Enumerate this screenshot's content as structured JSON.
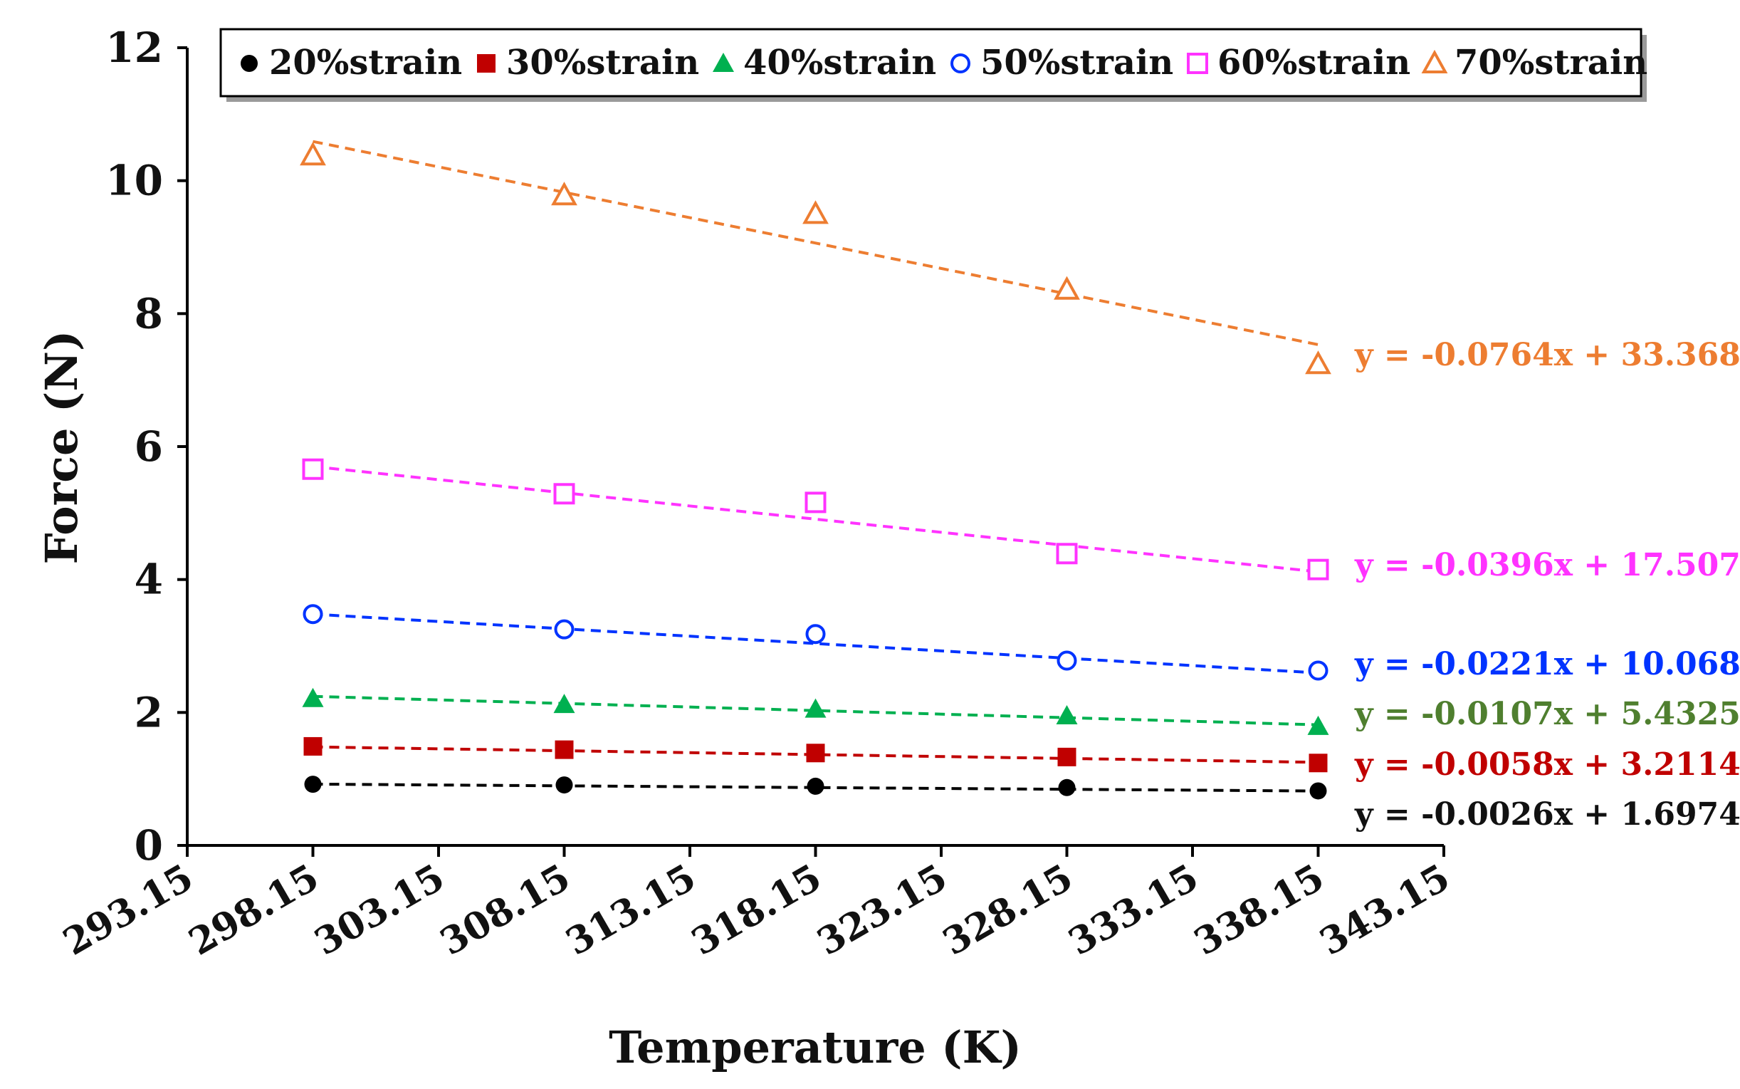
{
  "chart_data": {
    "type": "scatter",
    "title": "",
    "xlabel": "Temperature (K)",
    "ylabel": "Force (N)",
    "xlim": [
      293.15,
      343.15
    ],
    "ylim": [
      0,
      12
    ],
    "xticks": [
      "293.15",
      "298.15",
      "303.15",
      "308.15",
      "313.15",
      "318.15",
      "323.15",
      "328.15",
      "333.15",
      "338.15",
      "343.15"
    ],
    "yticks": [
      "0",
      "2",
      "4",
      "6",
      "8",
      "10",
      "12"
    ],
    "grid": false,
    "legend_position": "top",
    "series": [
      {
        "name": "20%strain",
        "marker": "filled-circle",
        "color": "#000000",
        "x": [
          298.15,
          308.15,
          318.15,
          328.15,
          338.15
        ],
        "y": [
          0.92,
          0.91,
          0.89,
          0.87,
          0.82
        ],
        "trendline": {
          "slope": -0.0026,
          "intercept": 1.6974,
          "equation": "y = -0.0026x + 1.6974"
        }
      },
      {
        "name": "30%strain",
        "marker": "filled-square",
        "color": "#c00000",
        "x": [
          298.15,
          308.15,
          318.15,
          328.15,
          338.15
        ],
        "y": [
          1.49,
          1.44,
          1.39,
          1.33,
          1.24
        ],
        "trendline": {
          "slope": -0.0058,
          "intercept": 3.2114,
          "equation": "y = -0.0058x + 3.2114"
        }
      },
      {
        "name": "40%strain",
        "marker": "filled-triangle",
        "color": "#00b050",
        "x": [
          298.15,
          308.15,
          318.15,
          328.15,
          338.15
        ],
        "y": [
          2.21,
          2.12,
          2.05,
          1.95,
          1.79
        ],
        "trendline": {
          "slope": -0.0107,
          "intercept": 5.4325,
          "equation": "y = -0.0107x + 5.4325"
        }
      },
      {
        "name": "50%strain",
        "marker": "open-circle",
        "color": "#0033ff",
        "x": [
          298.15,
          308.15,
          318.15,
          328.15,
          338.15
        ],
        "y": [
          3.48,
          3.25,
          3.18,
          2.78,
          2.63
        ],
        "trendline": {
          "slope": -0.0221,
          "intercept": 10.068,
          "equation": "y = -0.0221x + 10.068"
        }
      },
      {
        "name": "60%strain",
        "marker": "open-square",
        "color": "#ff33ff",
        "x": [
          298.15,
          308.15,
          318.15,
          328.15,
          338.15
        ],
        "y": [
          5.66,
          5.29,
          5.16,
          4.39,
          4.15
        ],
        "trendline": {
          "slope": -0.0396,
          "intercept": 17.507,
          "equation": "y = -0.0396x + 17.507"
        }
      },
      {
        "name": "70%strain",
        "marker": "open-triangle",
        "color": "#ed7d31",
        "x": [
          298.15,
          308.15,
          318.15,
          328.15,
          338.15
        ],
        "y": [
          10.38,
          9.78,
          9.5,
          8.36,
          7.24
        ],
        "trendline": {
          "slope": -0.0764,
          "intercept": 33.368,
          "equation": "y = -0.0764x + 33.368"
        }
      }
    ],
    "equation_colors": [
      "#111111",
      "#c00000",
      "#4f7f2f",
      "#0033ff",
      "#ff33ff",
      "#ed7d31"
    ]
  }
}
